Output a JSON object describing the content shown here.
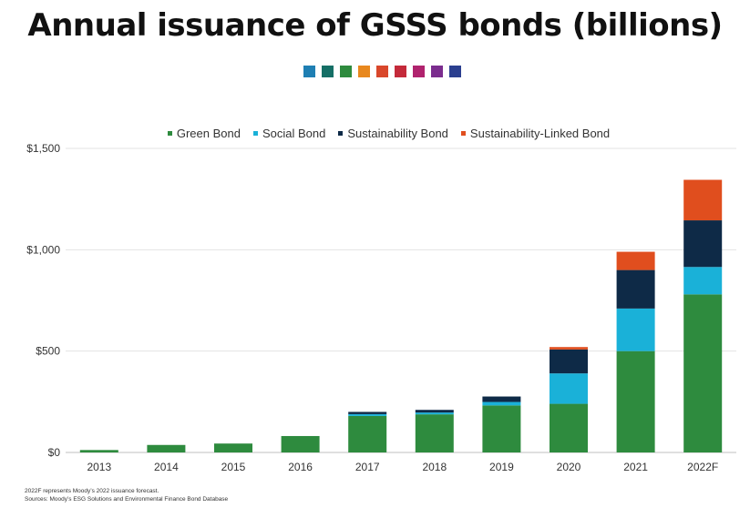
{
  "page": {
    "title": "Annual issuance of GSSS bonds (billions)",
    "palette": [
      "#1f7fb3",
      "#156f66",
      "#2e8b3e",
      "#e8881e",
      "#d9472b",
      "#c42a3a",
      "#b0236e",
      "#7b2d8e",
      "#2b3f8f"
    ],
    "footnotes": [
      "2022F represents Moody’s 2022 issuance forecast.",
      "Sources: Moody’s ESG Solutions and Environmental Finance Bond Database"
    ]
  },
  "chart_data": {
    "type": "bar",
    "stacked": true,
    "title": "Annual issuance of GSSS bonds (billions)",
    "xlabel": "",
    "ylabel": "",
    "ylim": [
      0,
      1500
    ],
    "yticks": [
      0,
      500,
      1000,
      1500
    ],
    "ytick_labels": [
      "$0",
      "$500",
      "$1,000",
      "$1,500"
    ],
    "grid": true,
    "legend_position": "top-center",
    "categories": [
      "2013",
      "2014",
      "2015",
      "2016",
      "2017",
      "2018",
      "2019",
      "2020",
      "2021",
      "2022F"
    ],
    "series": [
      {
        "name": "Green Bond",
        "color": "#2e8b3e",
        "values": [
          12,
          37,
          44,
          81,
          180,
          188,
          232,
          240,
          500,
          780
        ]
      },
      {
        "name": "Social Bond",
        "color": "#1ab1d8",
        "values": [
          0,
          0,
          0,
          0,
          9,
          9,
          17,
          150,
          210,
          135
        ]
      },
      {
        "name": "Sustainability Bond",
        "color": "#0e2a47",
        "values": [
          0,
          0,
          0,
          0,
          11,
          13,
          27,
          118,
          190,
          230
        ]
      },
      {
        "name": "Sustainability-Linked Bond",
        "color": "#e04e1e",
        "values": [
          0,
          0,
          0,
          0,
          0,
          0,
          0,
          12,
          90,
          200
        ]
      }
    ]
  }
}
